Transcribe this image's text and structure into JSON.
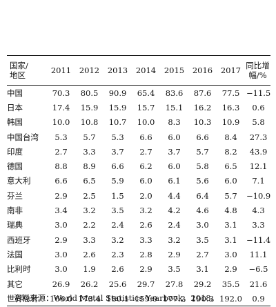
{
  "table": {
    "columns": [
      "国家/地区",
      "2011",
      "2012",
      "2013",
      "2014",
      "2015",
      "2016",
      "2017",
      "同比增幅/%"
    ],
    "header": {
      "region_line1": "国家/",
      "region_line2": "地区",
      "y2011": "2011",
      "y2012": "2012",
      "y2013": "2013",
      "y2014": "2014",
      "y2015": "2015",
      "y2016": "2016",
      "y2017": "2017",
      "yoy_line1": "同比增",
      "yoy_line2": "幅/%"
    },
    "rows": [
      [
        "中国",
        "70.3",
        "80.5",
        "90.9",
        "65.4",
        "83.6",
        "87.6",
        "77.5",
        "−11.5"
      ],
      [
        "日本",
        "17.4",
        "15.9",
        "15.9",
        "15.7",
        "15.1",
        "16.2",
        "16.3",
        "0.6"
      ],
      [
        "韩国",
        "10.0",
        "10.8",
        "10.7",
        "10.0",
        "8.3",
        "10.3",
        "10.9",
        "5.8"
      ],
      [
        "中国台湾",
        "5.3",
        "5.7",
        "5.3",
        "6.6",
        "6.0",
        "6.6",
        "8.4",
        "27.3"
      ],
      [
        "印度",
        "2.7",
        "3.3",
        "3.7",
        "2.7",
        "3.7",
        "5.7",
        "8.2",
        "43.9"
      ],
      [
        "德国",
        "8.8",
        "8.9",
        "6.6",
        "6.2",
        "6.0",
        "5.8",
        "6.5",
        "12.1"
      ],
      [
        "意大利",
        "6.6",
        "6.5",
        "5.9",
        "6.0",
        "6.1",
        "5.6",
        "6.0",
        "7.1"
      ],
      [
        "芬兰",
        "2.9",
        "2.5",
        "1.5",
        "2.0",
        "4.4",
        "6.4",
        "5.7",
        "−10.9"
      ],
      [
        "南非",
        "3.4",
        "3.2",
        "3.5",
        "3.2",
        "4.2",
        "4.6",
        "4.8",
        "4.3"
      ],
      [
        "瑞典",
        "3.0",
        "2.2",
        "2.4",
        "2.6",
        "2.4",
        "3.0",
        "3.1",
        "3.3"
      ],
      [
        "西班牙",
        "2.9",
        "3.3",
        "3.2",
        "3.3",
        "3.2",
        "3.5",
        "3.1",
        "−11.4"
      ],
      [
        "法国",
        "3.0",
        "2.6",
        "2.3",
        "2.8",
        "2.9",
        "2.7",
        "3.0",
        "11.1"
      ],
      [
        "比利时",
        "3.0",
        "1.9",
        "2.6",
        "2.9",
        "3.5",
        "3.1",
        "2.9",
        "−6.5"
      ],
      [
        "其它",
        "26.9",
        "26.2",
        "25.6",
        "29.7",
        "27.8",
        "29.2",
        "35.5",
        "21.6"
      ],
      [
        "世界总计",
        "166.0",
        "173.4",
        "180.1",
        "159.0",
        "177.2",
        "190.3",
        "192.0",
        "0.9"
      ]
    ]
  },
  "footnote": {
    "prefix": "资料来源：",
    "source": "World Metal Statistics Yearbook，2018。"
  }
}
